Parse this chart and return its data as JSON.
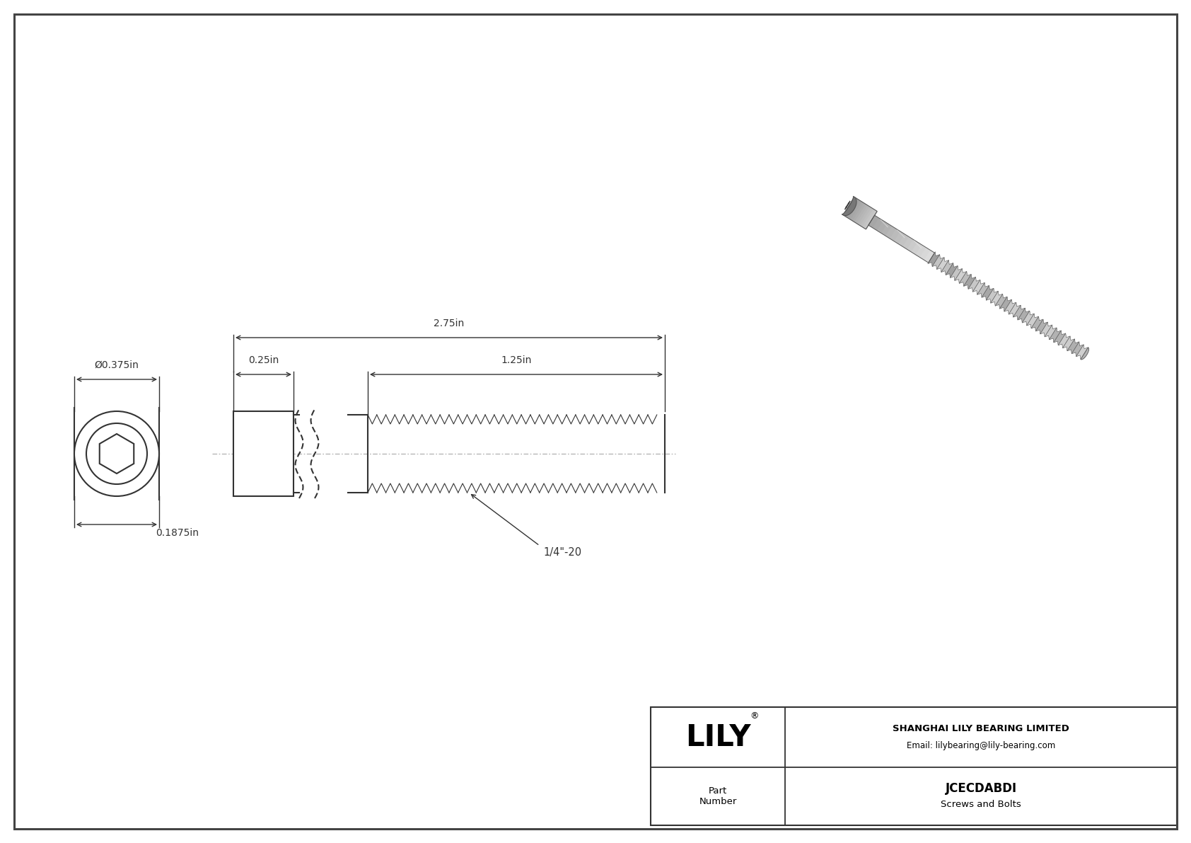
{
  "bg_color": "#ffffff",
  "drawing_bg": "#ffffff",
  "border_color": "#444444",
  "line_color": "#333333",
  "dim_color": "#333333",
  "title": "JCECDABDI",
  "subtitle": "Screws and Bolts",
  "company": "SHANGHAI LILY BEARING LIMITED",
  "email": "Email: lilybearing@lily-bearing.com",
  "part_label": "Part\nNumber",
  "logo_text": "LILY",
  "dim_head_diameter": "Ø0.375in",
  "dim_head_height": "0.1875in",
  "dim_total_length": "2.75in",
  "dim_head_length": "0.25in",
  "dim_thread_length": "1.25in",
  "dim_thread_label": "1/4\"-20"
}
